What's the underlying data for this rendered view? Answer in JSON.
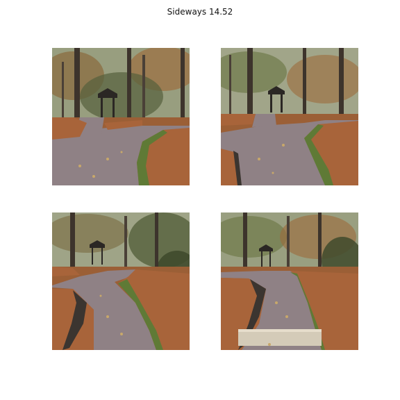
{
  "figure": {
    "title": "Sideways 14.52"
  },
  "colors": {
    "background": "#ffffff",
    "sky": "#d9dccf",
    "foliage_dark": "#4f5a38",
    "foliage_autumn": "#9c6a3a",
    "pavement": "#8f8185",
    "leaf_litter": "#a8643a",
    "grass": "#5f7a36",
    "gazebo_roof": "#2b2724",
    "trunk": "#3d342c",
    "stone_step": "#d4cbb8"
  },
  "panels": [
    {
      "subject": "park-path-fork-with-gazebo"
    },
    {
      "subject": "park-path-curve-with-gazebo"
    },
    {
      "subject": "park-path-bend-with-gazebo"
    },
    {
      "subject": "park-path-with-step-and-gazebo"
    }
  ]
}
